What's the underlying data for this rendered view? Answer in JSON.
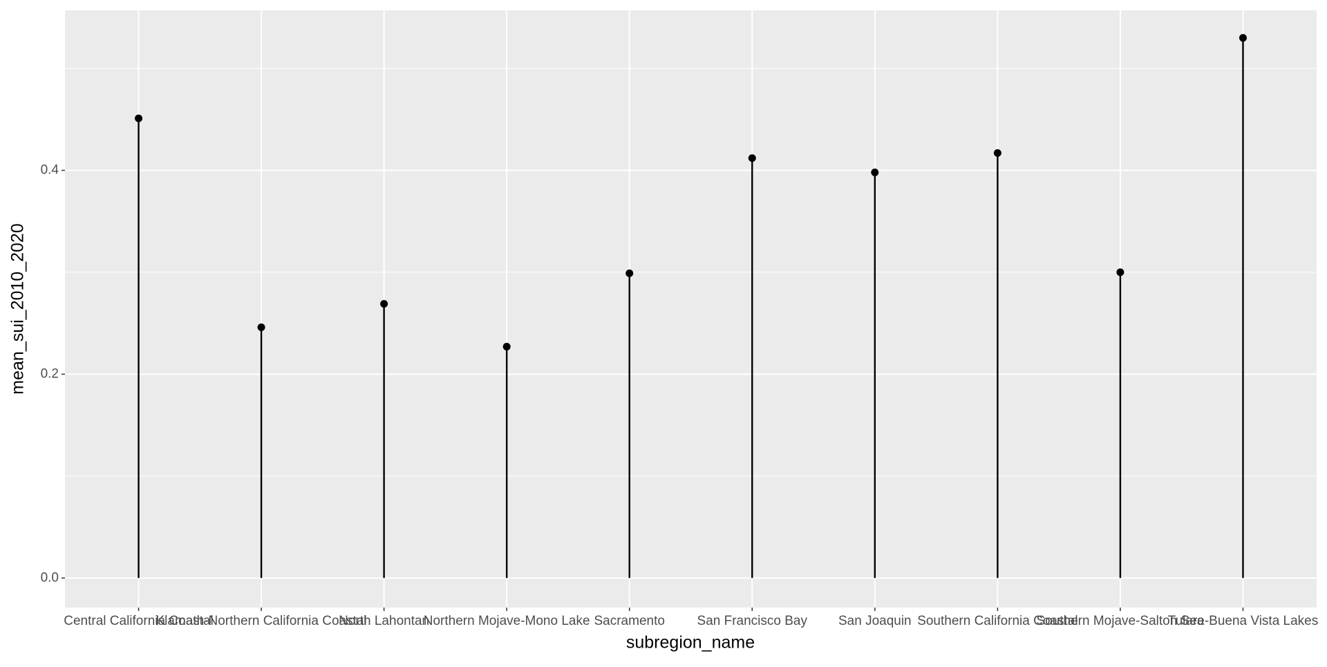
{
  "chart_data": {
    "type": "lollipop",
    "x_label": "subregion_name",
    "y_label": "mean_sui_2010_2020",
    "categories": [
      "Central California Coastal",
      "Klamath-Northern California Coastal",
      "North Lahontan",
      "Northern Mojave-Mono Lake",
      "Sacramento",
      "San Francisco Bay",
      "San Joaquin",
      "Southern California Coastal",
      "Southern Mojave-Salton Sea",
      "Tulare-Buena Vista Lakes"
    ],
    "values": [
      0.451,
      0.246,
      0.269,
      0.227,
      0.299,
      0.412,
      0.398,
      0.417,
      0.3,
      0.53
    ],
    "color": "#000000",
    "ylim": [
      -0.029,
      0.557
    ],
    "yticks": [
      {
        "value": 0,
        "label": "0.0"
      },
      0.2,
      0.4
    ],
    "grid": true
  }
}
